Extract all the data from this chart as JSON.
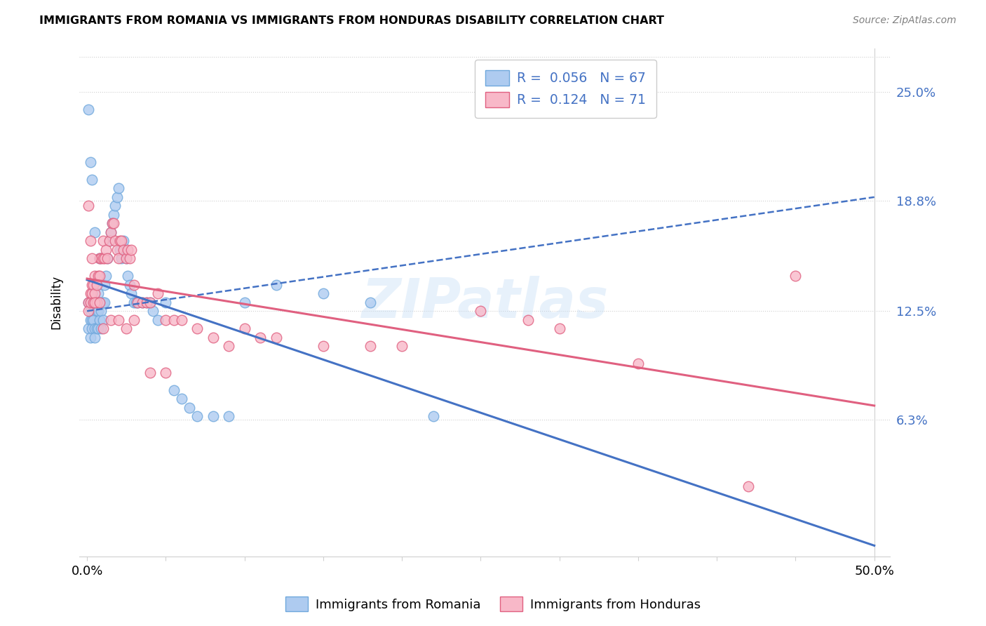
{
  "title": "IMMIGRANTS FROM ROMANIA VS IMMIGRANTS FROM HONDURAS DISABILITY CORRELATION CHART",
  "source": "Source: ZipAtlas.com",
  "ylabel": "Disability",
  "ytick_labels": [
    "25.0%",
    "18.8%",
    "12.5%",
    "6.3%"
  ],
  "ytick_values": [
    0.25,
    0.188,
    0.125,
    0.063
  ],
  "xmin": 0.0,
  "xmax": 0.5,
  "ymin": -0.015,
  "ymax": 0.275,
  "romania_color": "#aecbf0",
  "romania_edge": "#6fa8dc",
  "honduras_color": "#f8b8c8",
  "honduras_edge": "#e06080",
  "romania_R": 0.056,
  "romania_N": 67,
  "honduras_R": 0.124,
  "honduras_N": 71,
  "legend_label_romania": "R =  0.056   N = 67",
  "legend_label_honduras": "R =  0.124   N = 71",
  "watermark": "ZIPatlas",
  "romania_line_color": "#4472c4",
  "honduras_line_color": "#e06080",
  "romania_line_style": "solid",
  "honduras_line_style": "solid",
  "romania_dashed_color": "#4472c4",
  "romania_x": [
    0.001,
    0.001,
    0.002,
    0.002,
    0.002,
    0.003,
    0.003,
    0.003,
    0.004,
    0.004,
    0.005,
    0.005,
    0.005,
    0.006,
    0.006,
    0.007,
    0.007,
    0.007,
    0.008,
    0.008,
    0.009,
    0.009,
    0.01,
    0.01,
    0.011,
    0.011,
    0.012,
    0.013,
    0.014,
    0.015,
    0.016,
    0.017,
    0.018,
    0.019,
    0.02,
    0.021,
    0.022,
    0.023,
    0.025,
    0.026,
    0.027,
    0.028,
    0.03,
    0.031,
    0.032,
    0.035,
    0.038,
    0.04,
    0.042,
    0.045,
    0.05,
    0.055,
    0.06,
    0.065,
    0.07,
    0.08,
    0.09,
    0.1,
    0.12,
    0.15,
    0.18,
    0.22,
    0.001,
    0.002,
    0.003,
    0.005,
    0.008
  ],
  "romania_y": [
    0.13,
    0.115,
    0.125,
    0.12,
    0.11,
    0.13,
    0.12,
    0.115,
    0.125,
    0.12,
    0.13,
    0.115,
    0.11,
    0.125,
    0.115,
    0.135,
    0.125,
    0.115,
    0.13,
    0.12,
    0.125,
    0.115,
    0.13,
    0.12,
    0.14,
    0.13,
    0.145,
    0.155,
    0.165,
    0.17,
    0.175,
    0.18,
    0.185,
    0.19,
    0.195,
    0.16,
    0.155,
    0.165,
    0.155,
    0.145,
    0.14,
    0.135,
    0.13,
    0.13,
    0.13,
    0.13,
    0.13,
    0.13,
    0.125,
    0.12,
    0.13,
    0.08,
    0.075,
    0.07,
    0.065,
    0.065,
    0.065,
    0.13,
    0.14,
    0.135,
    0.13,
    0.065,
    0.24,
    0.21,
    0.2,
    0.17,
    0.155
  ],
  "honduras_x": [
    0.001,
    0.001,
    0.002,
    0.002,
    0.003,
    0.003,
    0.004,
    0.004,
    0.005,
    0.005,
    0.006,
    0.006,
    0.007,
    0.008,
    0.008,
    0.009,
    0.01,
    0.01,
    0.011,
    0.012,
    0.013,
    0.014,
    0.015,
    0.016,
    0.017,
    0.018,
    0.019,
    0.02,
    0.021,
    0.022,
    0.023,
    0.025,
    0.026,
    0.027,
    0.028,
    0.03,
    0.032,
    0.035,
    0.038,
    0.04,
    0.045,
    0.05,
    0.055,
    0.06,
    0.07,
    0.08,
    0.09,
    0.1,
    0.11,
    0.12,
    0.15,
    0.18,
    0.2,
    0.25,
    0.28,
    0.3,
    0.35,
    0.001,
    0.002,
    0.003,
    0.005,
    0.008,
    0.01,
    0.015,
    0.02,
    0.025,
    0.03,
    0.04,
    0.05,
    0.42,
    0.45
  ],
  "honduras_y": [
    0.13,
    0.125,
    0.135,
    0.13,
    0.14,
    0.135,
    0.14,
    0.13,
    0.145,
    0.135,
    0.14,
    0.13,
    0.145,
    0.155,
    0.145,
    0.155,
    0.165,
    0.155,
    0.155,
    0.16,
    0.155,
    0.165,
    0.17,
    0.175,
    0.175,
    0.165,
    0.16,
    0.155,
    0.165,
    0.165,
    0.16,
    0.155,
    0.16,
    0.155,
    0.16,
    0.14,
    0.13,
    0.13,
    0.13,
    0.13,
    0.135,
    0.12,
    0.12,
    0.12,
    0.115,
    0.11,
    0.105,
    0.115,
    0.11,
    0.11,
    0.105,
    0.105,
    0.105,
    0.125,
    0.12,
    0.115,
    0.095,
    0.185,
    0.165,
    0.155,
    0.13,
    0.13,
    0.115,
    0.12,
    0.12,
    0.115,
    0.12,
    0.09,
    0.09,
    0.025,
    0.145
  ]
}
